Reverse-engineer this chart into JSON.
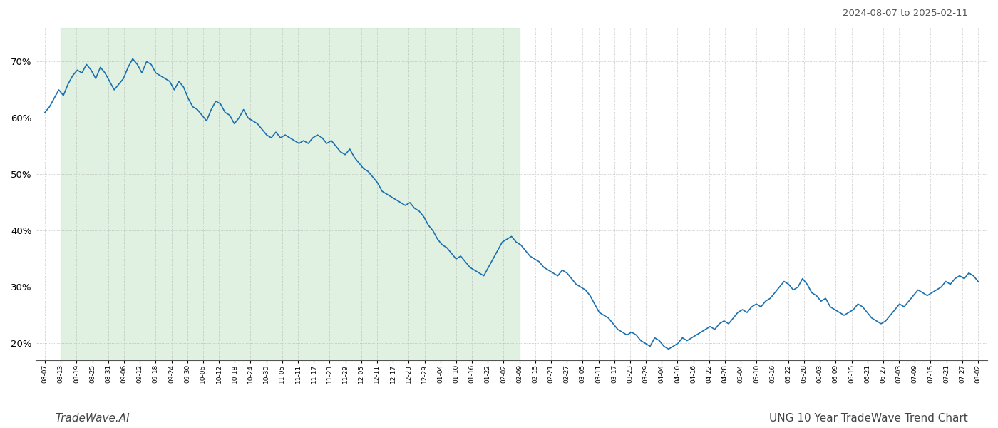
{
  "title_right": "2024-08-07 to 2025-02-11",
  "title_bottom_left": "TradeWave.AI",
  "title_bottom_right": "UNG 10 Year TradeWave Trend Chart",
  "line_color": "#1a6faf",
  "line_width": 1.2,
  "shaded_region_color": "#c8e6c9",
  "shaded_region_alpha": 0.55,
  "background_color": "#ffffff",
  "grid_color": "#aaaaaa",
  "grid_style": ":",
  "ylim": [
    17,
    76
  ],
  "yticks": [
    20,
    30,
    40,
    50,
    60,
    70
  ],
  "x_labels": [
    "08-07",
    "08-13",
    "08-19",
    "08-25",
    "08-31",
    "09-06",
    "09-12",
    "09-18",
    "09-24",
    "09-30",
    "10-06",
    "10-12",
    "10-18",
    "10-24",
    "10-30",
    "11-05",
    "11-11",
    "11-17",
    "11-23",
    "11-29",
    "12-05",
    "12-11",
    "12-17",
    "12-23",
    "12-29",
    "01-04",
    "01-10",
    "01-16",
    "01-22",
    "02-02",
    "02-09",
    "02-15",
    "02-21",
    "02-27",
    "03-05",
    "03-11",
    "03-17",
    "03-23",
    "03-29",
    "04-04",
    "04-10",
    "04-16",
    "04-22",
    "04-28",
    "05-04",
    "05-10",
    "05-16",
    "05-22",
    "05-28",
    "06-03",
    "06-09",
    "06-15",
    "06-21",
    "06-27",
    "07-03",
    "07-09",
    "07-15",
    "07-21",
    "07-27",
    "08-02"
  ],
  "shaded_start_label": "08-13",
  "shaded_end_label": "02-09",
  "y_values": [
    61.0,
    62.0,
    63.5,
    65.0,
    64.0,
    66.0,
    67.5,
    68.5,
    68.0,
    69.5,
    68.5,
    67.0,
    69.0,
    68.0,
    66.5,
    65.0,
    66.0,
    67.0,
    69.0,
    70.5,
    69.5,
    68.0,
    70.0,
    69.5,
    68.0,
    67.5,
    67.0,
    66.5,
    65.0,
    66.5,
    65.5,
    63.5,
    62.0,
    61.5,
    60.5,
    59.5,
    61.5,
    63.0,
    62.5,
    61.0,
    60.5,
    59.0,
    60.0,
    61.5,
    60.0,
    59.5,
    59.0,
    58.0,
    57.0,
    56.5,
    57.5,
    56.5,
    57.0,
    56.5,
    56.0,
    55.5,
    56.0,
    55.5,
    56.5,
    57.0,
    56.5,
    55.5,
    56.0,
    55.0,
    54.0,
    53.5,
    54.5,
    53.0,
    52.0,
    51.0,
    50.5,
    49.5,
    48.5,
    47.0,
    46.5,
    46.0,
    45.5,
    45.0,
    44.5,
    45.0,
    44.0,
    43.5,
    42.5,
    41.0,
    40.0,
    38.5,
    37.5,
    37.0,
    36.0,
    35.0,
    35.5,
    34.5,
    33.5,
    33.0,
    32.5,
    32.0,
    33.5,
    35.0,
    36.5,
    38.0,
    38.5,
    39.0,
    38.0,
    37.5,
    36.5,
    35.5,
    35.0,
    34.5,
    33.5,
    33.0,
    32.5,
    32.0,
    33.0,
    32.5,
    31.5,
    30.5,
    30.0,
    29.5,
    28.5,
    27.0,
    25.5,
    25.0,
    24.5,
    23.5,
    22.5,
    22.0,
    21.5,
    22.0,
    21.5,
    20.5,
    20.0,
    19.5,
    21.0,
    20.5,
    19.5,
    19.0,
    19.5,
    20.0,
    21.0,
    20.5,
    21.0,
    21.5,
    22.0,
    22.5,
    23.0,
    22.5,
    23.5,
    24.0,
    23.5,
    24.5,
    25.5,
    26.0,
    25.5,
    26.5,
    27.0,
    26.5,
    27.5,
    28.0,
    29.0,
    30.0,
    31.0,
    30.5,
    29.5,
    30.0,
    31.5,
    30.5,
    29.0,
    28.5,
    27.5,
    28.0,
    26.5,
    26.0,
    25.5,
    25.0,
    25.5,
    26.0,
    27.0,
    26.5,
    25.5,
    24.5,
    24.0,
    23.5,
    24.0,
    25.0,
    26.0,
    27.0,
    26.5,
    27.5,
    28.5,
    29.5,
    29.0,
    28.5,
    29.0,
    29.5,
    30.0,
    31.0,
    30.5,
    31.5,
    32.0,
    31.5,
    32.5,
    32.0,
    31.0
  ]
}
